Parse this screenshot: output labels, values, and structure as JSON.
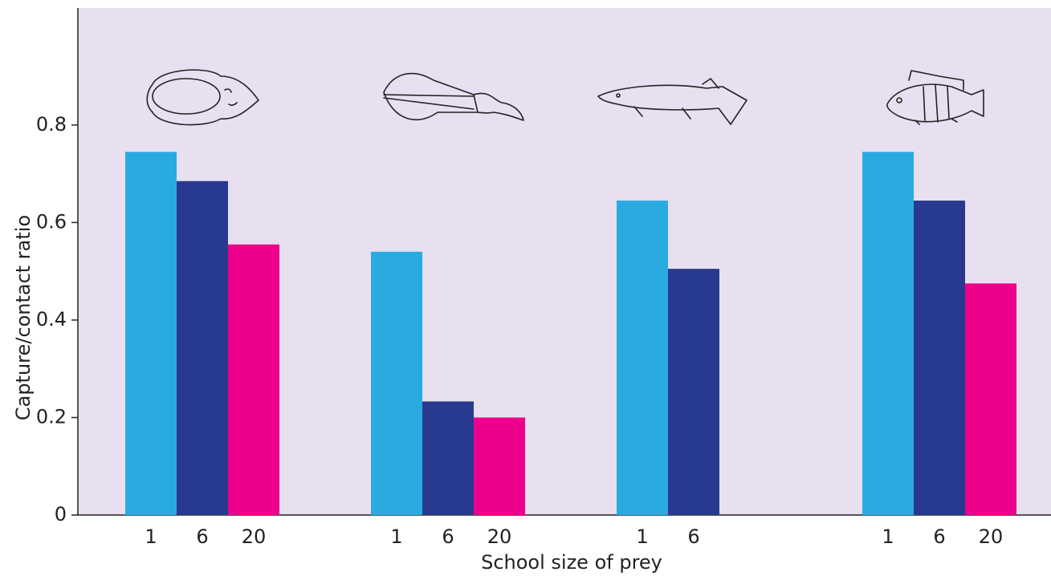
{
  "chart_data": {
    "type": "bar",
    "x_label": "School size of prey",
    "y_label": "Capture/contact ratio",
    "categories": [
      null,
      null,
      null,
      null
    ],
    "series": [
      {
        "name": "1",
        "color": "#29abe2",
        "values": [
          0.745,
          0.54,
          0.645,
          0.745
        ]
      },
      {
        "name": "6",
        "color": "#283a8f",
        "values": [
          0.685,
          0.233,
          0.505,
          0.645
        ]
      },
      {
        "name": "20",
        "color": "#ec008c",
        "values": [
          0.555,
          0.2,
          null,
          0.475
        ]
      }
    ],
    "ylim": [
      0,
      1.04
    ],
    "yticks": [
      0,
      0.2,
      0.4,
      0.6,
      0.8
    ]
  }
}
